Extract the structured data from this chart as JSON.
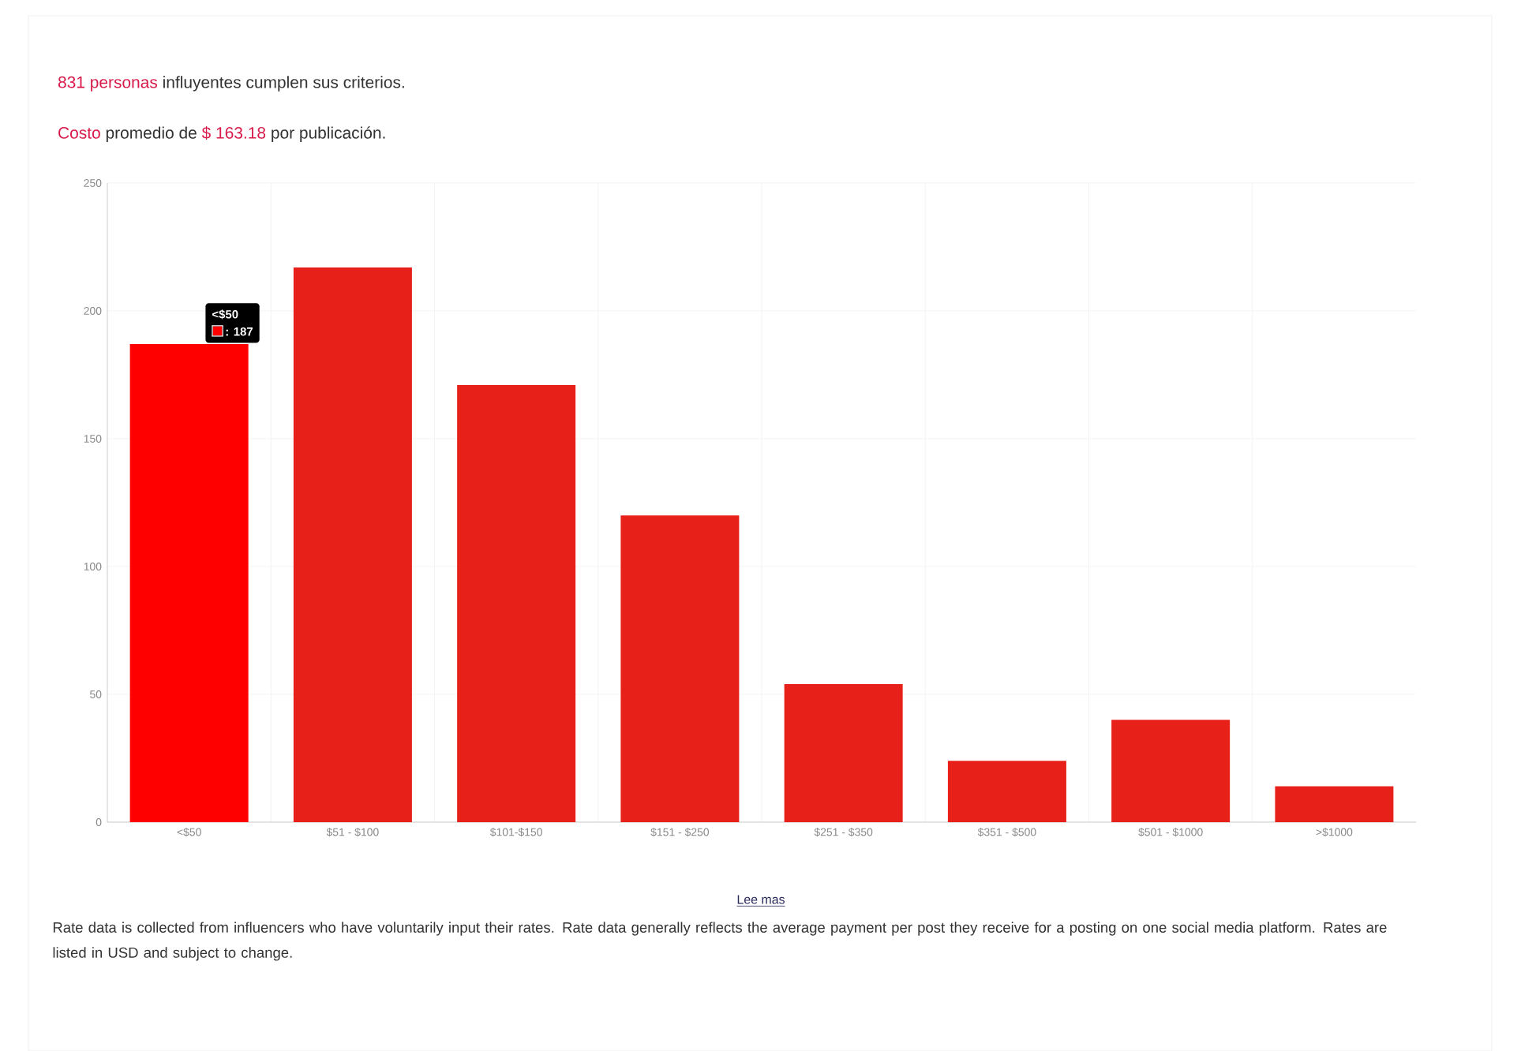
{
  "chart_data": {
    "type": "bar",
    "title": "**831 personas** influyentes cumplen sus criterios.",
    "subtitle": "**Costo** promedio de **$ 163.18** por publicación.",
    "categories": [
      "<$50",
      "$51 - $100",
      "$101-$150",
      "$151 - $250",
      "$251 - $350",
      "$351 - $500",
      "$501 - $1000",
      ">$1000"
    ],
    "values": [
      187,
      217,
      171,
      120,
      54,
      24,
      40,
      14
    ],
    "colors": [
      "#ff0000",
      "#e8201a",
      "#e8201a",
      "#e8201a",
      "#e8201a",
      "#e8201a",
      "#e8201a",
      "#e8201a"
    ],
    "ylim": [
      0,
      250
    ],
    "yticks": [
      0,
      50,
      100,
      150,
      200,
      250
    ],
    "grid": true,
    "annotations": [
      "<$50",
      ": 187",
      "Lee mas",
      "Rate data is collected from influencers who have voluntarily input their rates. Rate data generally reflects the average payment per post they receive for a posting on one social media platform. Rates are listed in USD and subject to change."
    ]
  }
}
